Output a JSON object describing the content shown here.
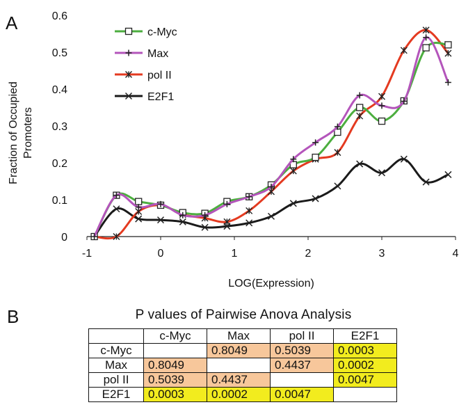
{
  "panel_a_label": "A",
  "panel_b_label": "B",
  "chart_data": {
    "type": "line",
    "xlabel": "LOG(Expression)",
    "ylabel_lines": [
      "Fraction of Occupied",
      "Promoters"
    ],
    "xlim": [
      -1,
      4
    ],
    "ylim": [
      0,
      0.6
    ],
    "xticks": [
      -1,
      0,
      1,
      2,
      3,
      4
    ],
    "yticks": [
      0,
      0.1,
      0.2,
      0.3,
      0.4,
      0.5,
      0.6
    ],
    "legend_position": "top-left",
    "series": [
      {
        "name": "c-Myc",
        "color": "#4cae3f",
        "marker": "square",
        "x": [
          -0.9,
          -0.6,
          -0.3,
          0,
          0.3,
          0.6,
          0.9,
          1.2,
          1.5,
          1.8,
          2.1,
          2.4,
          2.7,
          3.0,
          3.3,
          3.6,
          3.9
        ],
        "y": [
          0.0,
          0.112,
          0.095,
          0.085,
          0.065,
          0.063,
          0.095,
          0.108,
          0.14,
          0.195,
          0.215,
          0.283,
          0.35,
          0.313,
          0.368,
          0.512,
          0.52
        ]
      },
      {
        "name": "Max",
        "color": "#b455bb",
        "marker": "plus",
        "x": [
          -0.9,
          -0.6,
          -0.3,
          0,
          0.3,
          0.6,
          0.9,
          1.2,
          1.5,
          1.8,
          2.1,
          2.4,
          2.7,
          3.0,
          3.3,
          3.6,
          3.9
        ],
        "y": [
          0.0,
          0.112,
          0.08,
          0.088,
          0.058,
          0.058,
          0.088,
          0.108,
          0.135,
          0.21,
          0.255,
          0.298,
          0.383,
          0.355,
          0.367,
          0.54,
          0.418
        ]
      },
      {
        "name": "pol II",
        "color": "#e43a20",
        "marker": "asterisk",
        "x": [
          -0.9,
          -0.6,
          -0.3,
          0,
          0.3,
          0.6,
          0.9,
          1.2,
          1.5,
          1.8,
          2.1,
          2.4,
          2.7,
          3.0,
          3.3,
          3.6,
          3.9
        ],
        "y": [
          0.0,
          0.0,
          0.068,
          0.085,
          0.06,
          0.05,
          0.04,
          0.07,
          0.122,
          0.178,
          0.21,
          0.228,
          0.327,
          0.38,
          0.505,
          0.56,
          0.497
        ]
      },
      {
        "name": "E2F1",
        "color": "#1a1a1a",
        "marker": "x",
        "x": [
          -0.9,
          -0.6,
          -0.3,
          0,
          0.3,
          0.6,
          0.9,
          1.2,
          1.5,
          1.8,
          2.1,
          2.4,
          2.7,
          3.0,
          3.3,
          3.6,
          3.9
        ],
        "y": [
          0.0,
          0.075,
          0.048,
          0.045,
          0.04,
          0.025,
          0.028,
          0.037,
          0.055,
          0.09,
          0.103,
          0.137,
          0.197,
          0.173,
          0.21,
          0.148,
          0.168
        ]
      }
    ]
  },
  "table": {
    "title": "P values of Pairwise Anova Analysis",
    "col_headers": [
      "",
      "c-Myc",
      "Max",
      "pol II",
      "E2F1"
    ],
    "rows": [
      {
        "label": "c-Myc",
        "cells": [
          {
            "v": "",
            "c": "blank"
          },
          {
            "v": "0.8049",
            "c": "orange"
          },
          {
            "v": "0.5039",
            "c": "orange"
          },
          {
            "v": "0.0003",
            "c": "yellow"
          }
        ]
      },
      {
        "label": "Max",
        "cells": [
          {
            "v": "0.8049",
            "c": "orange"
          },
          {
            "v": "",
            "c": "blank"
          },
          {
            "v": "0.4437",
            "c": "orange"
          },
          {
            "v": "0.0002",
            "c": "yellow"
          }
        ]
      },
      {
        "label": "pol II",
        "cells": [
          {
            "v": "0.5039",
            "c": "orange"
          },
          {
            "v": "0.4437",
            "c": "orange"
          },
          {
            "v": "",
            "c": "blank"
          },
          {
            "v": "0.0047",
            "c": "yellow"
          }
        ]
      },
      {
        "label": "E2F1",
        "cells": [
          {
            "v": "0.0003",
            "c": "yellow"
          },
          {
            "v": "0.0002",
            "c": "yellow"
          },
          {
            "v": "0.0047",
            "c": "yellow"
          },
          {
            "v": "",
            "c": "blank"
          }
        ]
      }
    ],
    "colors": {
      "orange": "#f7c79b",
      "yellow": "#f2ec1e"
    }
  }
}
